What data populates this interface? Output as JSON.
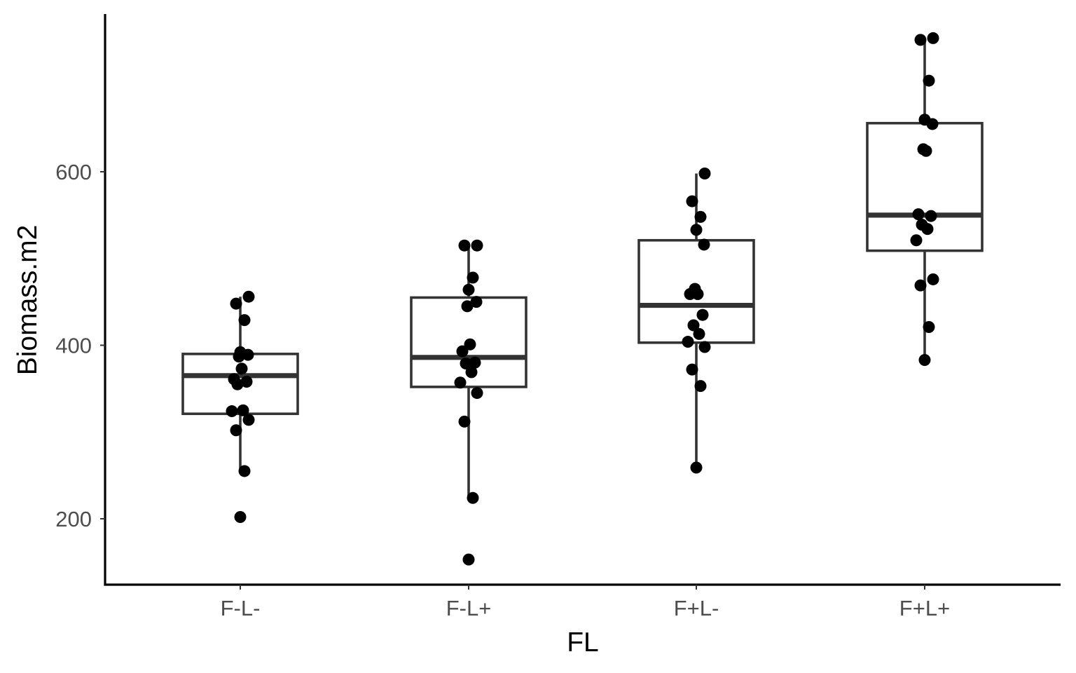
{
  "chart_data": {
    "type": "boxplot",
    "title": "",
    "xlabel": "FL",
    "ylabel": "Biomass.m2",
    "categories": [
      "F-L-",
      "F-L+",
      "F+L-",
      "F+L+"
    ],
    "yticks": [
      200,
      400,
      600
    ],
    "ylim": [
      125,
      780
    ],
    "grid": false,
    "boxes": [
      {
        "category": "F-L-",
        "lower": 255,
        "q1": 321,
        "median": 365,
        "q3": 390,
        "upper": 456
      },
      {
        "category": "F-L+",
        "lower": 224,
        "q1": 352,
        "median": 386,
        "q3": 455,
        "upper": 515
      },
      {
        "category": "F+L-",
        "lower": 259,
        "q1": 403,
        "median": 446,
        "q3": 521,
        "upper": 598
      },
      {
        "category": "F+L+",
        "lower": 383,
        "q1": 509,
        "median": 550,
        "q3": 656,
        "upper": 752
      }
    ],
    "points": [
      {
        "category": "F-L-",
        "values": [
          202,
          255,
          302,
          314,
          324,
          325,
          355,
          358,
          361,
          373,
          387,
          389,
          392,
          429,
          448,
          456
        ]
      },
      {
        "category": "F-L+",
        "values": [
          153,
          224,
          312,
          345,
          357,
          369,
          379,
          380,
          393,
          401,
          445,
          450,
          464,
          478,
          515,
          515
        ]
      },
      {
        "category": "F+L-",
        "values": [
          259,
          353,
          372,
          398,
          404,
          413,
          423,
          435,
          459,
          459,
          465,
          516,
          533,
          548,
          566,
          598
        ]
      },
      {
        "category": "F+L+",
        "values": [
          383,
          421,
          469,
          476,
          521,
          534,
          539,
          549,
          551,
          624,
          626,
          655,
          660,
          705,
          752,
          754
        ]
      }
    ]
  }
}
